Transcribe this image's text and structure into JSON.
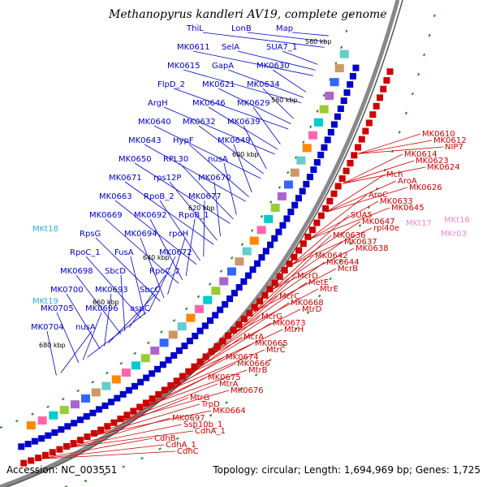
{
  "title": "Methanopyrus kandleri AV19, complete genome",
  "footer": {
    "accession": "Accession: NC_003551",
    "topology": "Topology: circular; Length: 1,694,969 bp; Genes: 1,725"
  },
  "scale_labels": [
    "560 kbp",
    "580 kbp",
    "600 kbp",
    "620 kbp",
    "640 kbp",
    "660 kbp",
    "680 kbp"
  ],
  "colors": {
    "forward": "#0000cc",
    "reverse": "#cc0000",
    "trna": "#33aadd",
    "rrna": "#ee88cc",
    "backbone": "#888888"
  },
  "forward_labels": [
    "ThiL",
    "LonB",
    "Map",
    "MK0611",
    "SelA",
    "SUA7_1",
    "MK0615",
    "GapA",
    "MK0630",
    "FlpD_2",
    "MK0621",
    "MK0634",
    "ArgH",
    "MK0646",
    "MK0629",
    "MK0640",
    "MK0632",
    "MK0639",
    "MK0643",
    "HypF",
    "MK0649",
    "MK0650",
    "RPL30",
    "nusA",
    "MK0671",
    "rps12P",
    "MK0670",
    "MK0663",
    "RpoB_2",
    "MK0677",
    "MK0669",
    "MK0692",
    "RpoB_1",
    "RpsG",
    "MK0694",
    "rpoH",
    "RpoC_1",
    "FusA",
    "MK0672",
    "MK0698",
    "SbcD",
    "RpoC_2",
    "MK0700",
    "MK0693",
    "SbcC",
    "MK0705",
    "MK0696",
    "aspC",
    "MK0704",
    "nusA"
  ],
  "trna_labels": [
    "MKt18",
    "MKt19"
  ],
  "reverse_labels": [
    "MK0610",
    "MK0612",
    "NIP7",
    "MK0614",
    "MK0623",
    "MK0624",
    "Mch",
    "AroA",
    "MK0626",
    "AroC",
    "MK0633",
    "MK0645",
    "SUA5",
    "MK0647",
    "rpl40e",
    "MK0636",
    "MK0637",
    "MK0638",
    "MK0642",
    "MK0644",
    "McrB",
    "McrD",
    "MetE",
    "MtrE",
    "McrC",
    "MK0668",
    "MtrD",
    "McrG",
    "MK0673",
    "MtrH",
    "McrA",
    "MK0665",
    "MtrC",
    "MK0674",
    "MK0666",
    "MtrB",
    "MK0675",
    "MtrA",
    "MK0676",
    "MtrG",
    "TrpD",
    "MK0664",
    "MK0697",
    "Ssh10b_1",
    "CdhA_1",
    "CdhB",
    "CdhA_1",
    "CdhC"
  ],
  "rrna_labels": [
    "MKt17",
    "MKt16",
    "MKr03"
  ]
}
